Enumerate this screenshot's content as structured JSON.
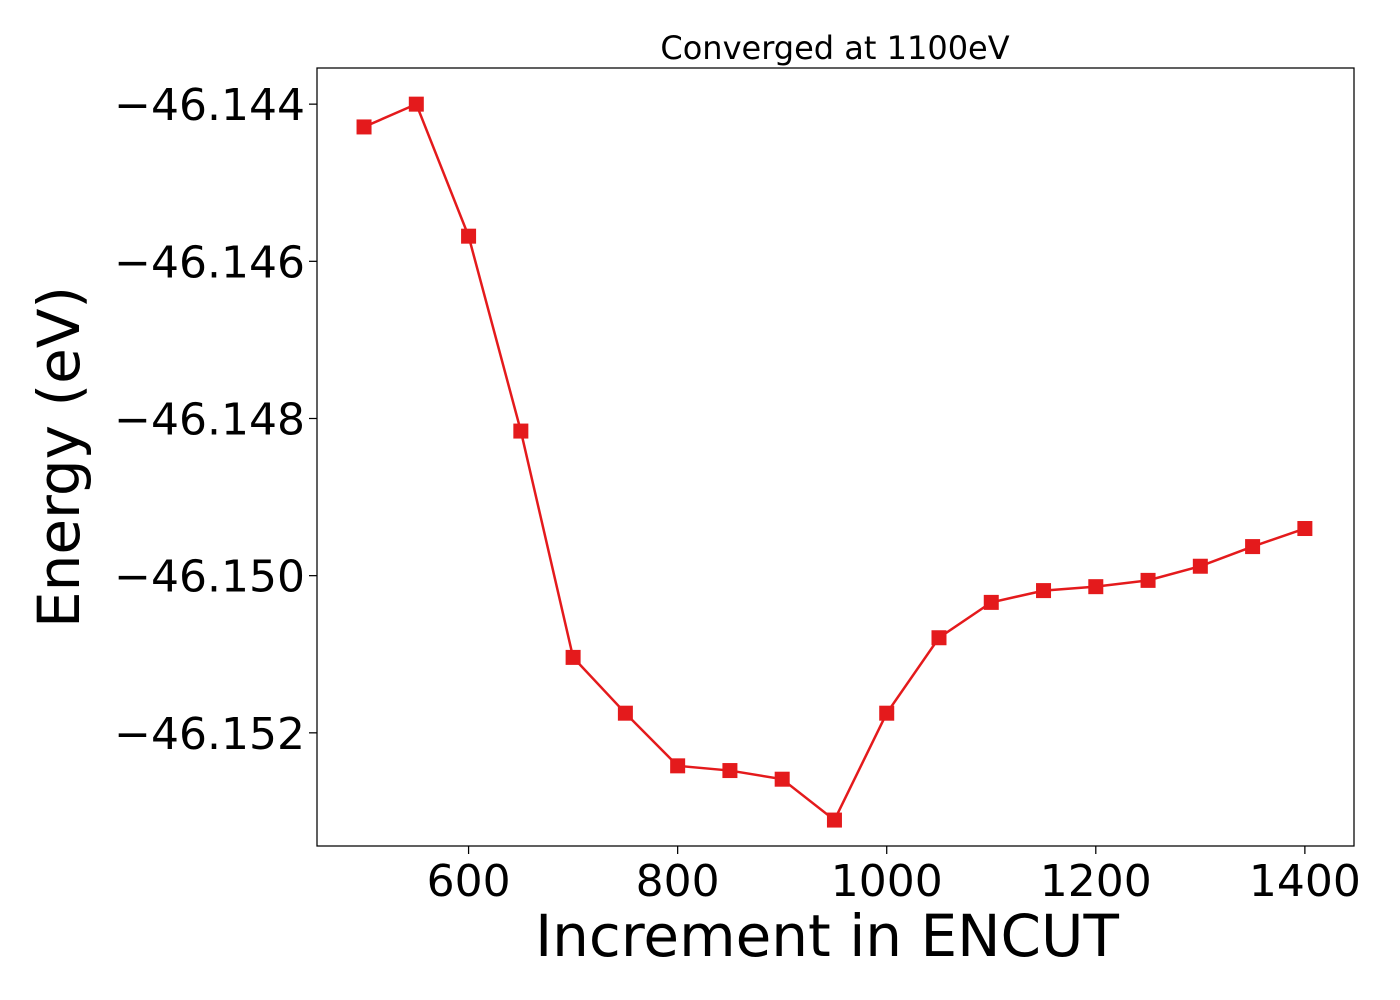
{
  "chart_data": {
    "type": "line",
    "title": "Converged at 1100eV",
    "xlabel": "Increment in ENCUT",
    "ylabel": "Energy (eV)",
    "xlim": [
      455,
      1447
    ],
    "ylim": [
      -46.15344,
      -46.14354
    ],
    "xticks": [
      {
        "value": 600,
        "label": "600"
      },
      {
        "value": 800,
        "label": "800"
      },
      {
        "value": 1000,
        "label": "1000"
      },
      {
        "value": 1200,
        "label": "1200"
      },
      {
        "value": 1400,
        "label": "1400"
      }
    ],
    "yticks": [
      {
        "value": -46.144,
        "label": "−46.144"
      },
      {
        "value": -46.146,
        "label": "−46.146"
      },
      {
        "value": -46.148,
        "label": "−46.148"
      },
      {
        "value": -46.15,
        "label": "−46.150"
      },
      {
        "value": -46.152,
        "label": "−46.152"
      }
    ],
    "grid": false,
    "series": [
      {
        "color": "#e41a1c",
        "marker": "square",
        "x": [
          500,
          550,
          600,
          650,
          700,
          750,
          800,
          850,
          900,
          950,
          1000,
          1050,
          1100,
          1150,
          1200,
          1250,
          1300,
          1350,
          1400
        ],
        "y": [
          -46.14429,
          -46.144,
          -46.14568,
          -46.14816,
          -46.15104,
          -46.15175,
          -46.15242,
          -46.15248,
          -46.15259,
          -46.15311,
          -46.15175,
          -46.15079,
          -46.15034,
          -46.15019,
          -46.15014,
          -46.15006,
          -46.14988,
          -46.14963,
          -46.1494
        ]
      }
    ]
  }
}
